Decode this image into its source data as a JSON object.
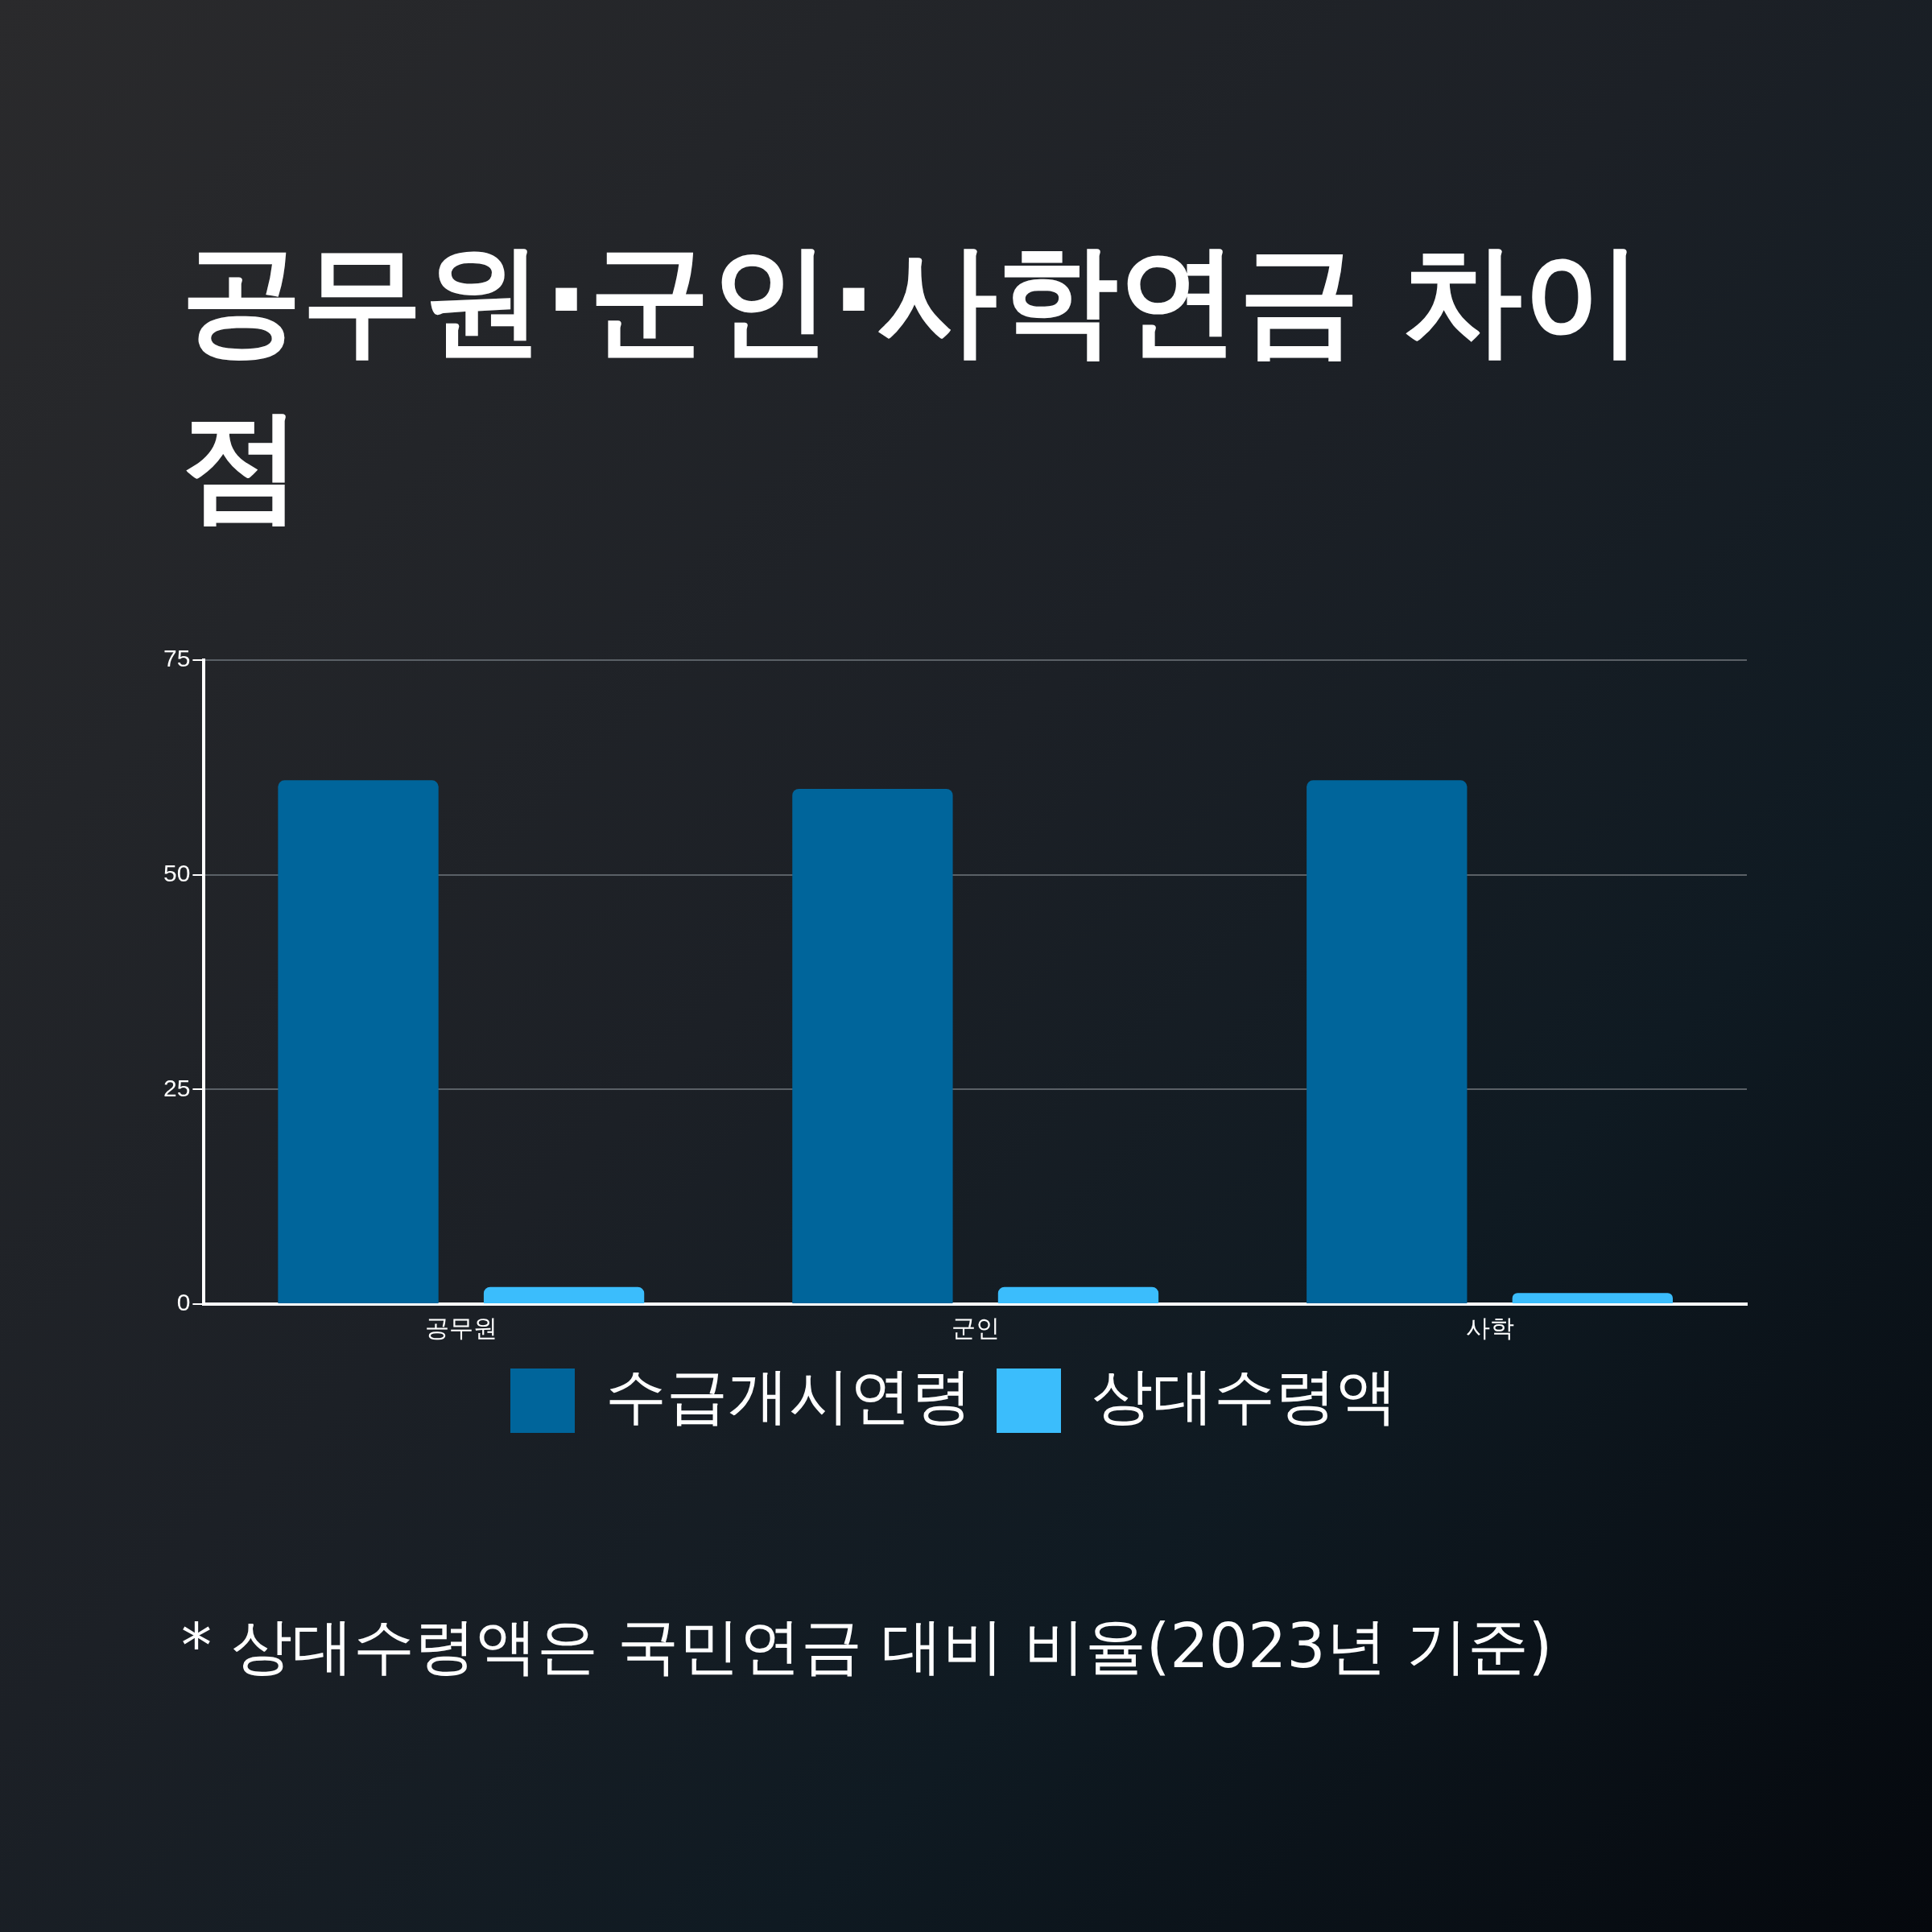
{
  "chart_data": {
    "type": "bar",
    "title": "공무원·군인·사학연금 차이점",
    "categories": [
      "공무원",
      "군인",
      "사학"
    ],
    "series": [
      {
        "name": "수급개시연령",
        "color": "#00659b",
        "values": [
          61,
          60,
          61
        ]
      },
      {
        "name": "상대수령액",
        "color": "#3bbdfc",
        "values": [
          2,
          2,
          1.3
        ]
      }
    ],
    "ylim": [
      0,
      75
    ],
    "yticks": [
      0,
      25,
      50,
      75
    ],
    "grid": "y",
    "legend": "bottom",
    "annotations": [
      "* 상대수령액은 국민연금 대비 비율(2023년 기준)"
    ]
  }
}
